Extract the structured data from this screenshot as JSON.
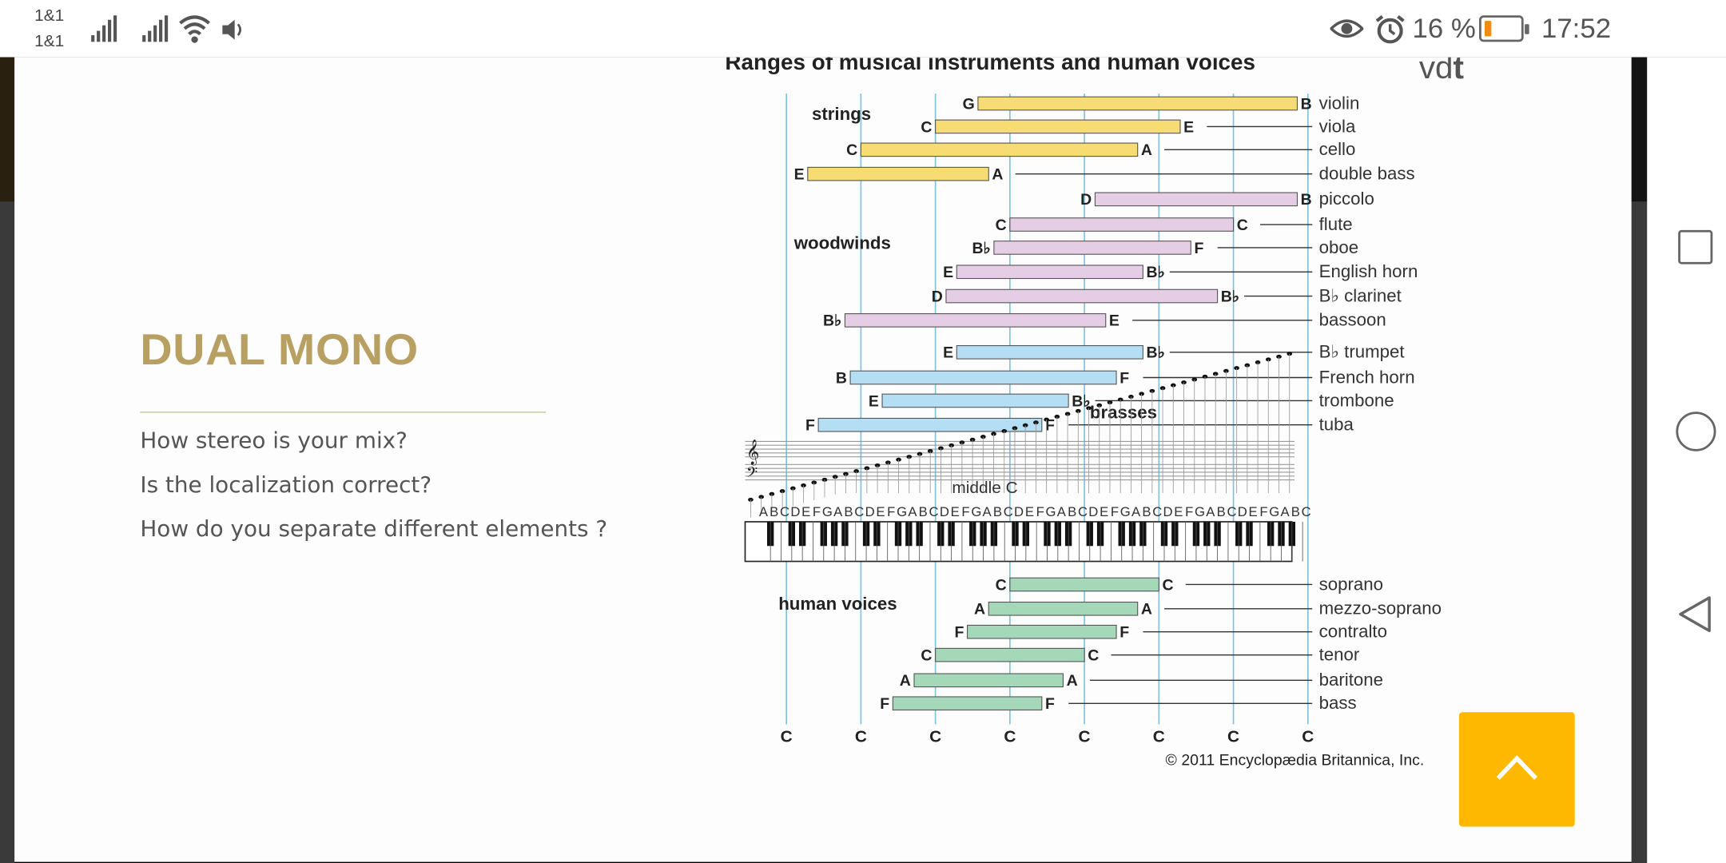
{
  "status_bar": {
    "carrier_1": "1&1",
    "carrier_2": "1&1",
    "battery_percent": "16 %",
    "battery_level": 0.16,
    "time": "17:52",
    "icons": [
      "signal-icon",
      "signal-icon",
      "wifi-icon",
      "speaker-icon",
      "eye-icon",
      "alarm-icon",
      "battery-icon"
    ]
  },
  "slide": {
    "title": "DUAL MONO",
    "questions": [
      "How stereo is your mix?",
      "Is the localization correct?",
      "How do you separate different elements ?"
    ],
    "logo": {
      "light": "vd",
      "bold": "t"
    },
    "accent_color": "#b8a063",
    "up_button_color": "#ffb800"
  },
  "figure": {
    "title": "Ranges of musical instruments and human voices",
    "credit": "© 2011 Encyclopædia Britannica, Inc.",
    "group_labels": {
      "strings": "strings",
      "woodwinds": "woodwinds",
      "brasses": "brasses",
      "human_voices": "human voices"
    },
    "middle_c_label": "middle C",
    "key_letters": "ABCDEFGABCDEFGABCDEFGABCDEFGABCDEFGABCDEFGABCDEFGABC",
    "c_markers": [
      "C",
      "C",
      "C",
      "C",
      "C",
      "C",
      "C",
      "C"
    ],
    "families": {
      "strings": "#f7dc74",
      "woodwinds": "#e6cde6",
      "brasses": "#b4def4",
      "voices": "#a4d8b8"
    },
    "instruments": [
      {
        "name": "violin",
        "family": "strings",
        "low": "G",
        "high": "B",
        "low_pitch": "G3",
        "high_pitch": "B7"
      },
      {
        "name": "viola",
        "family": "strings",
        "low": "C",
        "high": "E",
        "low_pitch": "C3",
        "high_pitch": "E6"
      },
      {
        "name": "cello",
        "family": "strings",
        "low": "C",
        "high": "A",
        "low_pitch": "C2",
        "high_pitch": "A5"
      },
      {
        "name": "double bass",
        "family": "strings",
        "low": "E",
        "high": "A",
        "low_pitch": "E1",
        "high_pitch": "A3"
      },
      {
        "name": "piccolo",
        "family": "woodwinds",
        "low": "D",
        "high": "B",
        "low_pitch": "D5",
        "high_pitch": "B7"
      },
      {
        "name": "flute",
        "family": "woodwinds",
        "low": "C",
        "high": "C",
        "low_pitch": "C4",
        "high_pitch": "C7"
      },
      {
        "name": "oboe",
        "family": "woodwinds",
        "low": "B♭",
        "high": "F",
        "low_pitch": "Bb3",
        "high_pitch": "F6"
      },
      {
        "name": "English horn",
        "family": "woodwinds",
        "low": "E",
        "high": "B♭",
        "low_pitch": "E3",
        "high_pitch": "Bb5"
      },
      {
        "name": "B♭ clarinet",
        "family": "woodwinds",
        "low": "D",
        "high": "B♭",
        "low_pitch": "D3",
        "high_pitch": "Bb6"
      },
      {
        "name": "bassoon",
        "family": "woodwinds",
        "low": "B♭",
        "high": "E",
        "low_pitch": "Bb1",
        "high_pitch": "E5"
      },
      {
        "name": "B♭ trumpet",
        "family": "brasses",
        "low": "E",
        "high": "B♭",
        "low_pitch": "E3",
        "high_pitch": "Bb5"
      },
      {
        "name": "French horn",
        "family": "brasses",
        "low": "B",
        "high": "F",
        "low_pitch": "B1",
        "high_pitch": "F5"
      },
      {
        "name": "trombone",
        "family": "brasses",
        "low": "E",
        "high": "B♭",
        "low_pitch": "E2",
        "high_pitch": "Bb4"
      },
      {
        "name": "tuba",
        "family": "brasses",
        "low": "F",
        "high": "F",
        "low_pitch": "F1",
        "high_pitch": "F4"
      },
      {
        "name": "soprano",
        "family": "voices",
        "low": "C",
        "high": "C",
        "low_pitch": "C4",
        "high_pitch": "C6"
      },
      {
        "name": "mezzo-soprano",
        "family": "voices",
        "low": "A",
        "high": "A",
        "low_pitch": "A3",
        "high_pitch": "A5"
      },
      {
        "name": "contralto",
        "family": "voices",
        "low": "F",
        "high": "F",
        "low_pitch": "F3",
        "high_pitch": "F5"
      },
      {
        "name": "tenor",
        "family": "voices",
        "low": "C",
        "high": "C",
        "low_pitch": "C3",
        "high_pitch": "C5"
      },
      {
        "name": "baritone",
        "family": "voices",
        "low": "A",
        "high": "A",
        "low_pitch": "A2",
        "high_pitch": "A4"
      },
      {
        "name": "bass",
        "family": "voices",
        "low": "F",
        "high": "F",
        "low_pitch": "F2",
        "high_pitch": "F4"
      }
    ]
  }
}
